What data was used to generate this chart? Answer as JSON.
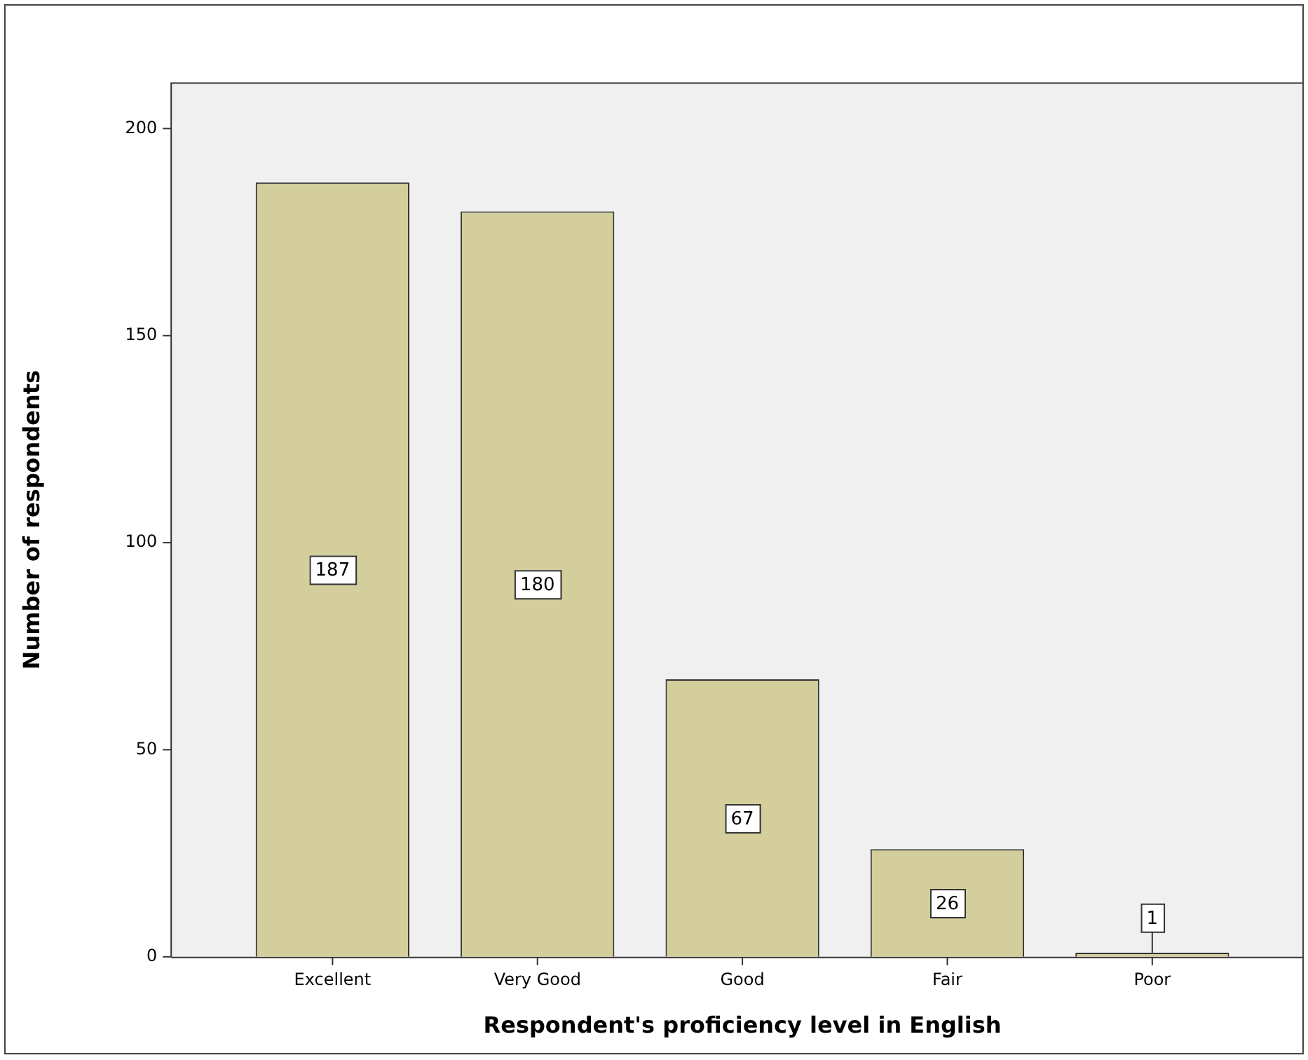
{
  "chart_data": {
    "type": "bar",
    "xlabel": "Respondent's proficiency level in English",
    "ylabel": "Number of respondents",
    "categories": [
      "Excellent",
      "Very Good",
      "Good",
      "Fair",
      "Poor"
    ],
    "values": [
      187,
      180,
      67,
      26,
      1
    ],
    "color": "#d3ce9b",
    "ylim": [
      0,
      211
    ],
    "yticks": [
      0,
      50,
      100,
      150,
      200
    ],
    "grid": false,
    "legend": false,
    "data_labels": true
  }
}
